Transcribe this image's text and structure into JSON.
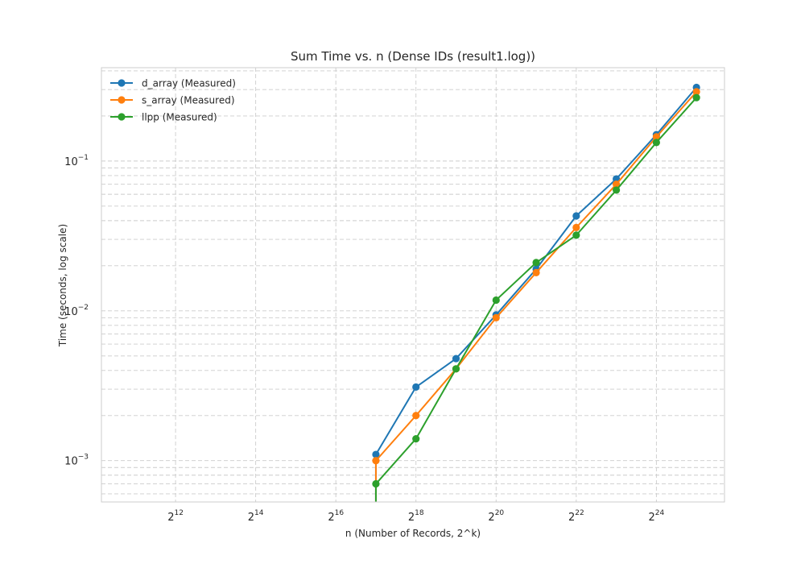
{
  "chart_data": {
    "type": "line",
    "title": "Sum Time vs. n (Dense IDs (result1.log))",
    "xlabel": "n (Number of Records, 2^k)",
    "ylabel": "Time (seconds, log scale)",
    "x_scale": "log2",
    "y_scale": "log10",
    "x_lim_exponent": [
      10.15,
      25.7
    ],
    "y_lim": [
      0.00053,
      0.42
    ],
    "x_ticks": [
      {
        "base": "2",
        "exp": "12",
        "value": 4096
      },
      {
        "base": "2",
        "exp": "14",
        "value": 16384
      },
      {
        "base": "2",
        "exp": "16",
        "value": 65536
      },
      {
        "base": "2",
        "exp": "18",
        "value": 262144
      },
      {
        "base": "2",
        "exp": "20",
        "value": 1048576
      },
      {
        "base": "2",
        "exp": "22",
        "value": 4194304
      },
      {
        "base": "2",
        "exp": "24",
        "value": 16777216
      }
    ],
    "y_ticks": [
      {
        "base": "10",
        "exp": "−3",
        "value": 0.001
      },
      {
        "base": "10",
        "exp": "−2",
        "value": 0.01
      },
      {
        "base": "10",
        "exp": "−1",
        "value": 0.1
      }
    ],
    "grid": true,
    "grid_minor_y": true,
    "legend_position": "top-left",
    "x": [
      131072,
      262144,
      524288,
      1048576,
      2097152,
      4194304,
      8388608,
      16777216,
      33554432
    ],
    "series": [
      {
        "name": "d_array (Measured)",
        "color": "#1f77b4",
        "values": [
          0.0011,
          0.0031,
          0.0048,
          0.0094,
          0.019,
          0.043,
          0.076,
          0.15,
          0.31
        ]
      },
      {
        "name": "s_array (Measured)",
        "color": "#ff7f0e",
        "values": [
          0.001,
          0.002,
          0.0041,
          0.009,
          0.018,
          0.036,
          0.07,
          0.145,
          0.29
        ]
      },
      {
        "name": "llpp (Measured)",
        "color": "#2ca02c",
        "values": [
          0.0007,
          0.0014,
          0.0041,
          0.0118,
          0.021,
          0.032,
          0.064,
          0.133,
          0.265
        ]
      }
    ]
  }
}
